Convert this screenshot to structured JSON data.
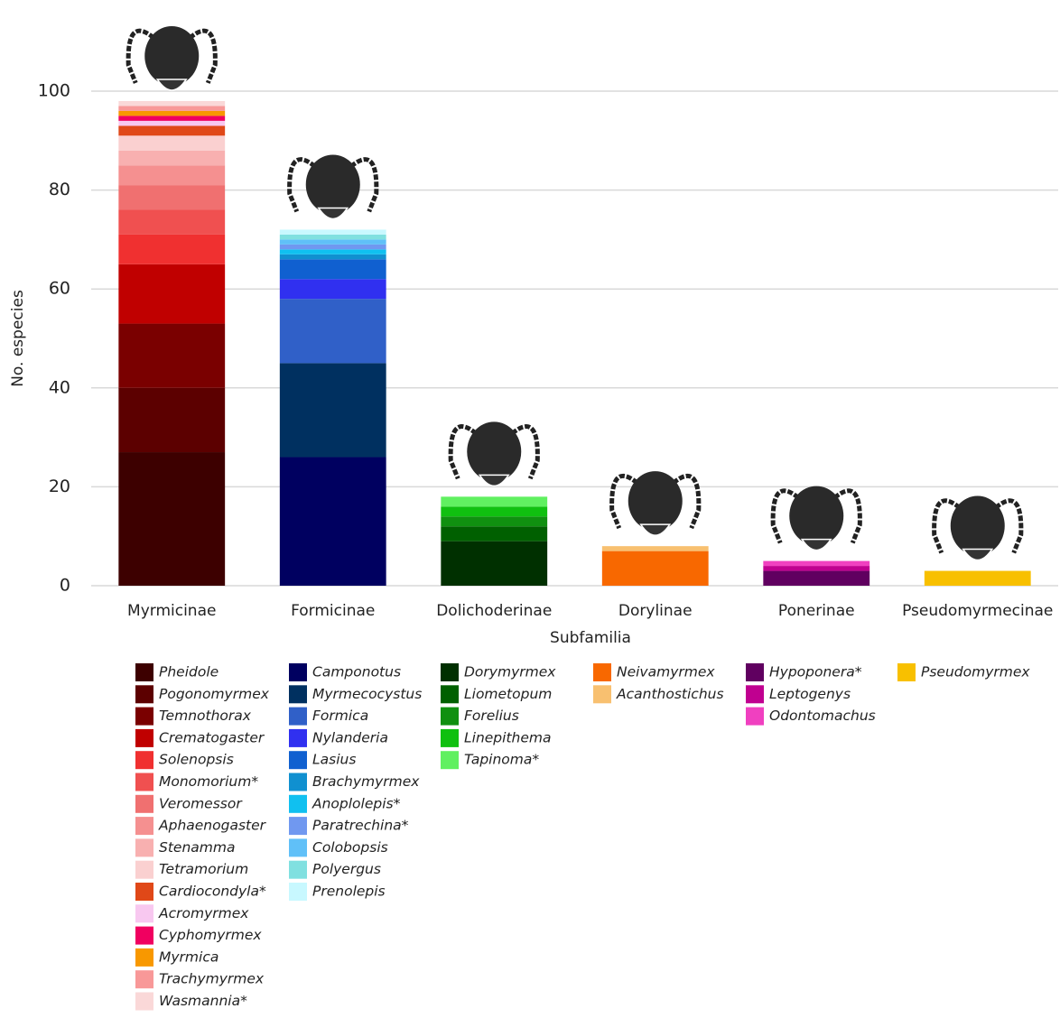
{
  "chart_data": {
    "type": "stacked_bar",
    "x_label": "Subfamilia",
    "y_label": "No. especies",
    "categories": [
      "Myrmicinae",
      "Formicinae",
      "Dolichoderinae",
      "Dorylinae",
      "Ponerinae",
      "Pseudomyrmecinae"
    ],
    "ylim": [
      0,
      100
    ],
    "yticks": [
      0,
      20,
      40,
      60,
      80,
      100
    ],
    "grid": true,
    "series": [
      {
        "name": "Pheidole",
        "color": "#3d0000",
        "values": [
          27,
          null,
          null,
          null,
          null,
          null
        ]
      },
      {
        "name": "Pogonomyrmex",
        "color": "#5c0000",
        "values": [
          13,
          null,
          null,
          null,
          null,
          null
        ]
      },
      {
        "name": "Temnothorax",
        "color": "#7a0000",
        "values": [
          13,
          null,
          null,
          null,
          null,
          null
        ]
      },
      {
        "name": "Crematogaster",
        "color": "#c00000",
        "values": [
          12,
          null,
          null,
          null,
          null,
          null
        ]
      },
      {
        "name": "Solenopsis",
        "color": "#f03030",
        "values": [
          6,
          null,
          null,
          null,
          null,
          null
        ]
      },
      {
        "name": "Monomorium*",
        "color": "#f05050",
        "values": [
          5,
          null,
          null,
          null,
          null,
          null
        ]
      },
      {
        "name": "Veromessor",
        "color": "#f07070",
        "values": [
          5,
          null,
          null,
          null,
          null,
          null
        ]
      },
      {
        "name": "Aphaenogaster",
        "color": "#f59090",
        "values": [
          4,
          null,
          null,
          null,
          null,
          null
        ]
      },
      {
        "name": "Stenamma",
        "color": "#f8b0b0",
        "values": [
          3,
          null,
          null,
          null,
          null,
          null
        ]
      },
      {
        "name": "Tetramorium",
        "color": "#fad0d0",
        "values": [
          3,
          null,
          null,
          null,
          null,
          null
        ]
      },
      {
        "name": "Cardiocondyla*",
        "color": "#e04818",
        "values": [
          2,
          null,
          null,
          null,
          null,
          null
        ]
      },
      {
        "name": "Acromyrmex",
        "color": "#f8c8f0",
        "values": [
          1,
          null,
          null,
          null,
          null,
          null
        ]
      },
      {
        "name": "Cyphomyrmex",
        "color": "#f00060",
        "values": [
          1,
          null,
          null,
          null,
          null,
          null
        ]
      },
      {
        "name": "Myrmica",
        "color": "#f89800",
        "values": [
          1,
          null,
          null,
          null,
          null,
          null
        ]
      },
      {
        "name": "Trachymyrmex",
        "color": "#f89898",
        "values": [
          1,
          null,
          null,
          null,
          null,
          null
        ]
      },
      {
        "name": "Wasmannia*",
        "color": "#fad8d8",
        "values": [
          1,
          null,
          null,
          null,
          null,
          null
        ]
      },
      {
        "name": "Camponotus",
        "color": "#000060",
        "values": [
          null,
          26,
          null,
          null,
          null,
          null
        ]
      },
      {
        "name": "Myrmecocystus",
        "color": "#003060",
        "values": [
          null,
          19,
          null,
          null,
          null,
          null
        ]
      },
      {
        "name": "Formica",
        "color": "#3060c8",
        "values": [
          null,
          13,
          null,
          null,
          null,
          null
        ]
      },
      {
        "name": "Nylanderia",
        "color": "#3030f0",
        "values": [
          null,
          4,
          null,
          null,
          null,
          null
        ]
      },
      {
        "name": "Lasius",
        "color": "#1060d0",
        "values": [
          null,
          4,
          null,
          null,
          null,
          null
        ]
      },
      {
        "name": "Brachymyrmex",
        "color": "#1090d0",
        "values": [
          null,
          1,
          null,
          null,
          null,
          null
        ]
      },
      {
        "name": "Anoplolepis*",
        "color": "#10c0f0",
        "values": [
          null,
          1,
          null,
          null,
          null,
          null
        ]
      },
      {
        "name": "Paratrechina*",
        "color": "#7098f0",
        "values": [
          null,
          1,
          null,
          null,
          null,
          null
        ]
      },
      {
        "name": "Colobopsis",
        "color": "#60c0f8",
        "values": [
          null,
          1,
          null,
          null,
          null,
          null
        ]
      },
      {
        "name": "Polyergus",
        "color": "#80e0e0",
        "values": [
          null,
          1,
          null,
          null,
          null,
          null
        ]
      },
      {
        "name": "Prenolepis",
        "color": "#c8f8ff",
        "values": [
          null,
          1,
          null,
          null,
          null,
          null
        ]
      },
      {
        "name": "Dorymyrmex",
        "color": "#003000",
        "values": [
          null,
          null,
          9,
          null,
          null,
          null
        ]
      },
      {
        "name": "Liometopum",
        "color": "#006000",
        "values": [
          null,
          null,
          3,
          null,
          null,
          null
        ]
      },
      {
        "name": "Forelius",
        "color": "#109010",
        "values": [
          null,
          null,
          2,
          null,
          null,
          null
        ]
      },
      {
        "name": "Linepithema",
        "color": "#10c010",
        "values": [
          null,
          null,
          2,
          null,
          null,
          null
        ]
      },
      {
        "name": "Tapinoma*",
        "color": "#60f060",
        "values": [
          null,
          null,
          2,
          null,
          null,
          null
        ]
      },
      {
        "name": "Neivamyrmex",
        "color": "#f86800",
        "values": [
          null,
          null,
          null,
          7,
          null,
          null
        ]
      },
      {
        "name": "Acanthostichus",
        "color": "#f8c070",
        "values": [
          null,
          null,
          null,
          1,
          null,
          null
        ]
      },
      {
        "name": "Hypoponera*",
        "color": "#600060",
        "values": [
          null,
          null,
          null,
          null,
          3,
          null
        ]
      },
      {
        "name": "Leptogenys",
        "color": "#c00090",
        "values": [
          null,
          null,
          null,
          null,
          1,
          null
        ]
      },
      {
        "name": "Odontomachus",
        "color": "#f040c0",
        "values": [
          null,
          null,
          null,
          null,
          1,
          null
        ]
      },
      {
        "name": "Pseudomyrmex",
        "color": "#f8c000",
        "values": [
          null,
          null,
          null,
          null,
          null,
          3
        ]
      }
    ]
  }
}
